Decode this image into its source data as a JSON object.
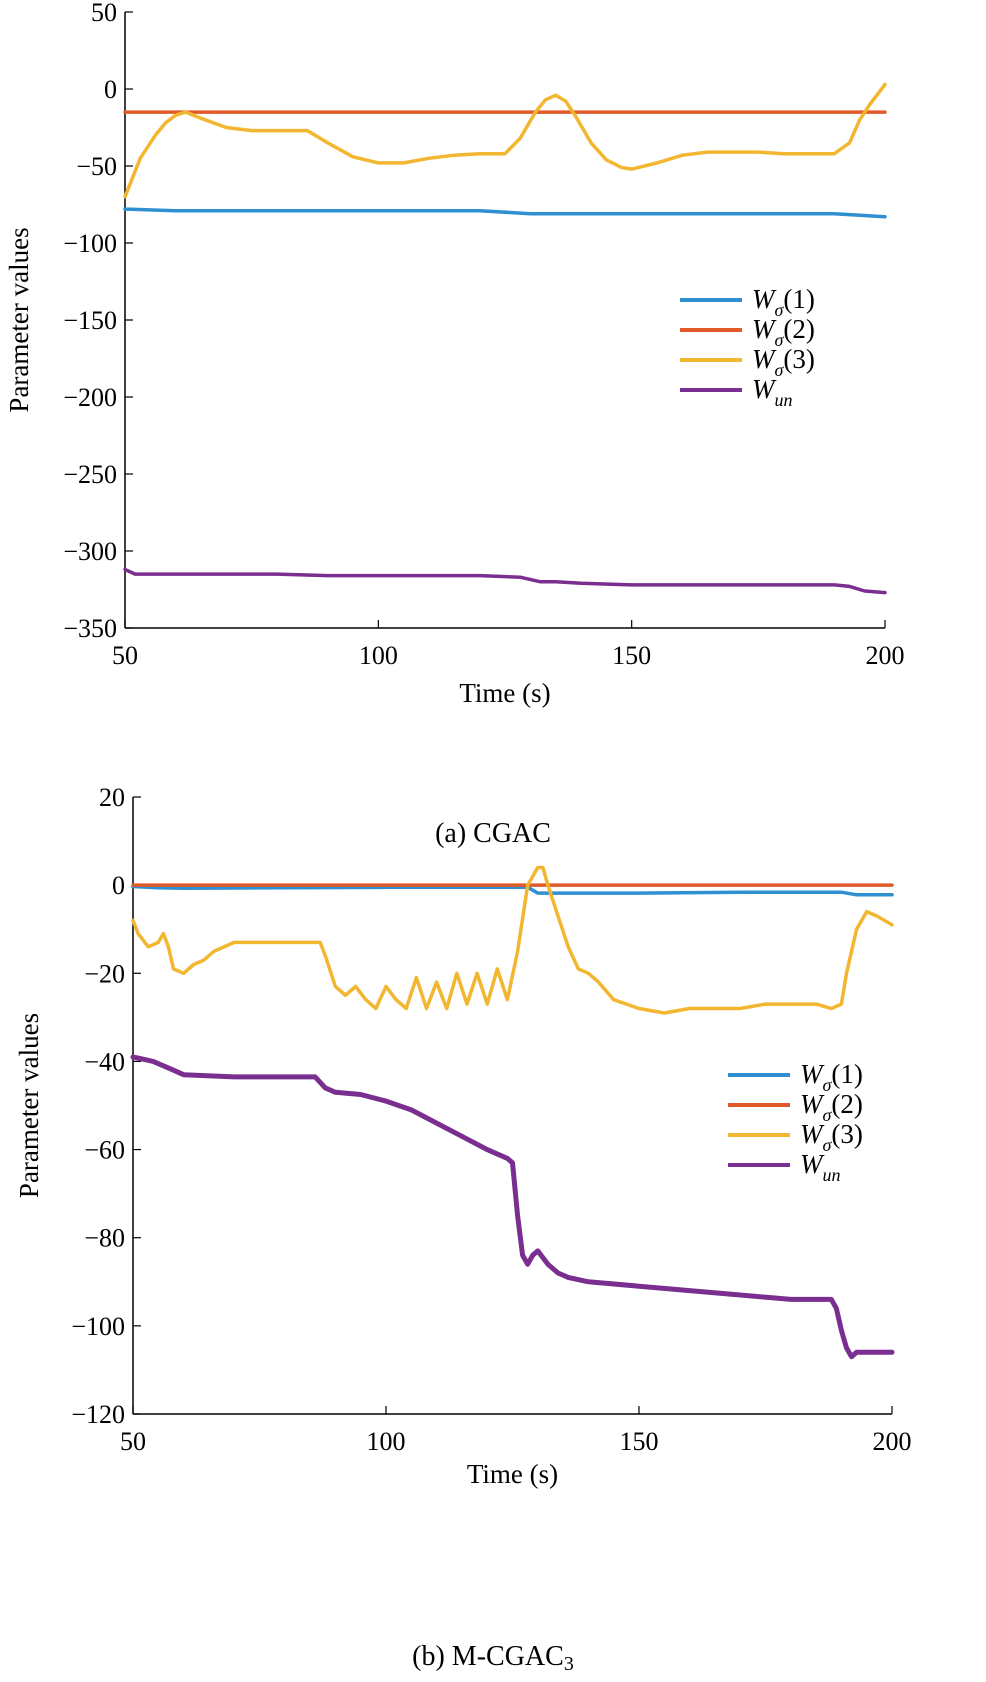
{
  "chart_data": [
    {
      "type": "line",
      "caption": "(a) CGAC",
      "xlabel": "Time (s)",
      "ylabel": "Parameter values",
      "xlim": [
        50,
        200
      ],
      "ylim": [
        -350,
        50
      ],
      "xticks": [
        50,
        100,
        150,
        200
      ],
      "yticks": [
        50,
        0,
        -50,
        -100,
        -150,
        -200,
        -250,
        -300,
        -350
      ],
      "grid": false,
      "legend_position": "right-middle",
      "series": [
        {
          "name": "Wσ(1)",
          "label_main": "W",
          "label_sub": "σ",
          "label_suffix": "(1)",
          "color": "#2f8fd0",
          "x": [
            50,
            60,
            80,
            100,
            120,
            130,
            150,
            170,
            190,
            200
          ],
          "y": [
            -78,
            -79,
            -79,
            -79,
            -79,
            -81,
            -81,
            -81,
            -81,
            -83
          ]
        },
        {
          "name": "Wσ(2)",
          "label_main": "W",
          "label_sub": "σ",
          "label_suffix": "(2)",
          "color": "#e05a2a",
          "x": [
            50,
            200
          ],
          "y": [
            -15,
            -15
          ]
        },
        {
          "name": "Wσ(3)",
          "label_main": "W",
          "label_sub": "σ",
          "label_suffix": "(3)",
          "color": "#f2b630",
          "x": [
            50,
            53,
            56,
            58,
            60,
            62,
            65,
            70,
            75,
            80,
            86,
            90,
            95,
            100,
            105,
            110,
            115,
            120,
            125,
            128,
            131,
            133,
            135,
            137,
            139,
            142,
            145,
            148,
            150,
            155,
            160,
            165,
            170,
            175,
            180,
            185,
            190,
            193,
            195,
            197,
            200
          ],
          "y": [
            -70,
            -45,
            -30,
            -22,
            -17,
            -15,
            -19,
            -25,
            -27,
            -27,
            -27,
            -35,
            -44,
            -48,
            -48,
            -45,
            -43,
            -42,
            -42,
            -32,
            -15,
            -7,
            -4,
            -8,
            -18,
            -35,
            -46,
            -51,
            -52,
            -48,
            -43,
            -41,
            -41,
            -41,
            -42,
            -42,
            -42,
            -35,
            -20,
            -10,
            3
          ]
        },
        {
          "name": "Wun",
          "label_main": "W",
          "label_sub": "un",
          "label_suffix": "",
          "color": "#7a2e8f",
          "x": [
            50,
            52,
            55,
            60,
            70,
            80,
            90,
            100,
            110,
            120,
            128,
            132,
            135,
            140,
            150,
            160,
            170,
            180,
            190,
            193,
            196,
            200
          ],
          "y": [
            -312,
            -315,
            -315,
            -315,
            -315,
            -315,
            -316,
            -316,
            -316,
            -316,
            -317,
            -320,
            -320,
            -321,
            -322,
            -322,
            -322,
            -322,
            -322,
            -323,
            -326,
            -327
          ]
        }
      ]
    },
    {
      "type": "line",
      "caption_main": "(b) M-CGAC",
      "caption_sub": "3",
      "xlabel": "Time (s)",
      "ylabel": "Parameter values",
      "xlim": [
        50,
        200
      ],
      "ylim": [
        -120,
        20
      ],
      "xticks": [
        50,
        100,
        150,
        200
      ],
      "yticks": [
        20,
        0,
        -20,
        -40,
        -60,
        -80,
        -100,
        -120
      ],
      "grid": false,
      "legend_position": "right-middle",
      "series": [
        {
          "name": "Wσ(1)",
          "label_main": "W",
          "label_sub": "σ",
          "label_suffix": "(1)",
          "color": "#2f8fd0",
          "x": [
            50,
            55,
            60,
            80,
            100,
            120,
            128,
            130,
            150,
            170,
            190,
            193,
            200
          ],
          "y": [
            -0.3,
            -0.6,
            -0.7,
            -0.6,
            -0.5,
            -0.5,
            -0.5,
            -1.8,
            -1.8,
            -1.6,
            -1.6,
            -2.2,
            -2.2
          ]
        },
        {
          "name": "Wσ(2)",
          "label_main": "W",
          "label_sub": "σ",
          "label_suffix": "(2)",
          "color": "#e05a2a",
          "x": [
            50,
            200
          ],
          "y": [
            0,
            0
          ]
        },
        {
          "name": "Wσ(3)",
          "label_main": "W",
          "label_sub": "σ",
          "label_suffix": "(3)",
          "color": "#f2b630",
          "x": [
            50,
            51,
            53,
            55,
            56,
            57,
            58,
            60,
            62,
            64,
            66,
            70,
            75,
            80,
            85,
            87,
            88,
            90,
            92,
            94,
            96,
            98,
            100,
            102,
            104,
            106,
            108,
            110,
            112,
            114,
            116,
            118,
            120,
            122,
            124,
            126,
            128,
            130,
            131,
            132,
            134,
            136,
            138,
            140,
            142,
            145,
            150,
            155,
            160,
            165,
            170,
            175,
            180,
            185,
            188,
            190,
            191,
            193,
            195,
            197,
            200
          ],
          "y": [
            -8,
            -11,
            -14,
            -13,
            -11,
            -14,
            -19,
            -20,
            -18,
            -17,
            -15,
            -13,
            -13,
            -13,
            -13,
            -13,
            -16,
            -23,
            -25,
            -23,
            -26,
            -28,
            -23,
            -26,
            -28,
            -21,
            -28,
            -22,
            -28,
            -20,
            -27,
            -20,
            -27,
            -19,
            -26,
            -15,
            0,
            4,
            4,
            0,
            -7,
            -14,
            -19,
            -20,
            -22,
            -26,
            -28,
            -29,
            -28,
            -28,
            -28,
            -27,
            -27,
            -27,
            -28,
            -27,
            -20,
            -10,
            -6,
            -7,
            -9
          ]
        },
        {
          "name": "Wun",
          "label_main": "W",
          "label_sub": "un",
          "label_suffix": "",
          "color": "#7a2e8f",
          "x": [
            50,
            52,
            54,
            56,
            58,
            60,
            70,
            80,
            86,
            88,
            90,
            95,
            100,
            105,
            110,
            115,
            120,
            124,
            125,
            126,
            127,
            128,
            129,
            130,
            132,
            134,
            136,
            140,
            150,
            160,
            170,
            180,
            188,
            189,
            190,
            191,
            192,
            193,
            195,
            200
          ],
          "y": [
            -39,
            -39.5,
            -40,
            -41,
            -42,
            -43,
            -43.5,
            -43.5,
            -43.5,
            -46,
            -47,
            -47.5,
            -49,
            -51,
            -54,
            -57,
            -60,
            -62,
            -63,
            -75,
            -84,
            -86,
            -84,
            -83,
            -86,
            -88,
            -89,
            -90,
            -91,
            -92,
            -93,
            -94,
            -94,
            -96,
            -101,
            -105,
            -107,
            -106,
            -106,
            -106
          ]
        }
      ]
    }
  ]
}
